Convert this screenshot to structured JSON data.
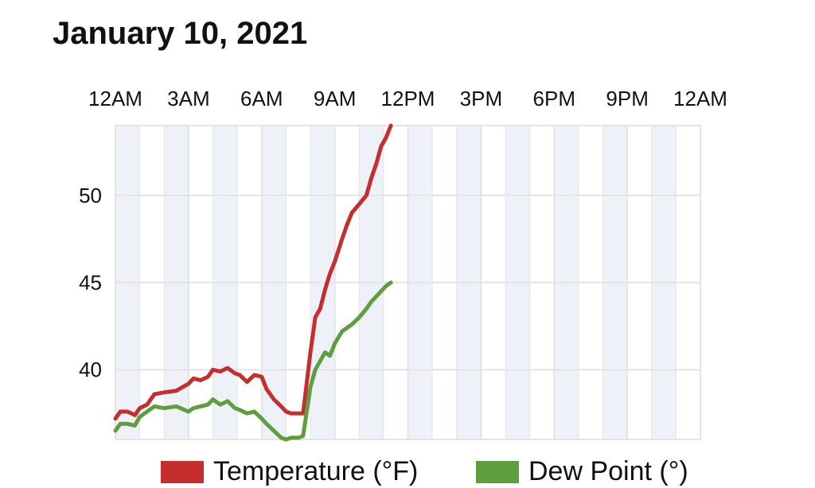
{
  "title": "January 10, 2021",
  "colors": {
    "temperature": "#c62d2d",
    "dew_point": "#5f9e3f",
    "band": "#eef2f8",
    "grid": "#e4e4e4"
  },
  "chart_data": {
    "type": "line",
    "title": "January 10, 2021",
    "x_unit": "hours since 12AM",
    "xlim": [
      0,
      24
    ],
    "ylim": [
      36,
      54
    ],
    "x_ticks": [
      {
        "value": 0,
        "label": "12AM"
      },
      {
        "value": 3,
        "label": "3AM"
      },
      {
        "value": 6,
        "label": "6AM"
      },
      {
        "value": 9,
        "label": "9AM"
      },
      {
        "value": 12,
        "label": "12PM"
      },
      {
        "value": 15,
        "label": "3PM"
      },
      {
        "value": 18,
        "label": "6PM"
      },
      {
        "value": 21,
        "label": "9PM"
      },
      {
        "value": 24,
        "label": "12AM"
      }
    ],
    "y_ticks": [
      40,
      45,
      50
    ],
    "grid": true,
    "legend_position": "bottom",
    "series": [
      {
        "name": "Temperature (°F)",
        "color": "#c62d2d",
        "x": [
          0,
          0.2,
          0.5,
          0.8,
          1.0,
          1.3,
          1.6,
          2.0,
          2.5,
          3.0,
          3.2,
          3.5,
          3.8,
          4.0,
          4.3,
          4.6,
          4.9,
          5.1,
          5.4,
          5.7,
          6.0,
          6.2,
          6.5,
          6.8,
          7.0,
          7.2,
          7.5,
          7.7,
          8.0,
          8.1,
          8.2,
          8.4,
          8.6,
          8.8,
          9.0,
          9.3,
          9.5,
          9.7,
          10.0,
          10.3,
          10.5,
          10.7,
          10.9,
          11.1,
          11.3
        ],
        "y": [
          37.2,
          37.6,
          37.6,
          37.4,
          37.8,
          38.0,
          38.6,
          38.7,
          38.8,
          39.2,
          39.5,
          39.4,
          39.6,
          40.0,
          39.9,
          40.1,
          39.8,
          39.7,
          39.3,
          39.7,
          39.6,
          38.9,
          38.3,
          37.9,
          37.6,
          37.5,
          37.5,
          37.5,
          41.0,
          42.0,
          43.0,
          43.5,
          44.6,
          45.5,
          46.2,
          47.5,
          48.3,
          49.0,
          49.5,
          50.0,
          51.0,
          51.8,
          52.8,
          53.3,
          54.0
        ]
      },
      {
        "name": "Dew Point (°)",
        "color": "#5f9e3f",
        "x": [
          0,
          0.2,
          0.5,
          0.8,
          1.0,
          1.3,
          1.6,
          2.0,
          2.5,
          3.0,
          3.2,
          3.5,
          3.8,
          4.0,
          4.3,
          4.6,
          4.9,
          5.1,
          5.4,
          5.7,
          6.0,
          6.2,
          6.5,
          6.8,
          7.0,
          7.2,
          7.5,
          7.7,
          8.0,
          8.1,
          8.2,
          8.4,
          8.6,
          8.8,
          9.0,
          9.3,
          9.5,
          9.7,
          10.0,
          10.3,
          10.5,
          10.7,
          10.9,
          11.1,
          11.3
        ],
        "y": [
          36.5,
          36.9,
          36.9,
          36.8,
          37.3,
          37.6,
          37.9,
          37.8,
          37.9,
          37.6,
          37.8,
          37.9,
          38.0,
          38.3,
          38.0,
          38.2,
          37.8,
          37.7,
          37.5,
          37.6,
          37.2,
          36.9,
          36.5,
          36.1,
          36.0,
          36.1,
          36.1,
          36.2,
          39.0,
          39.5,
          40.0,
          40.5,
          41.0,
          40.8,
          41.5,
          42.2,
          42.4,
          42.6,
          43.0,
          43.5,
          43.9,
          44.2,
          44.5,
          44.8,
          45.0
        ]
      }
    ]
  }
}
